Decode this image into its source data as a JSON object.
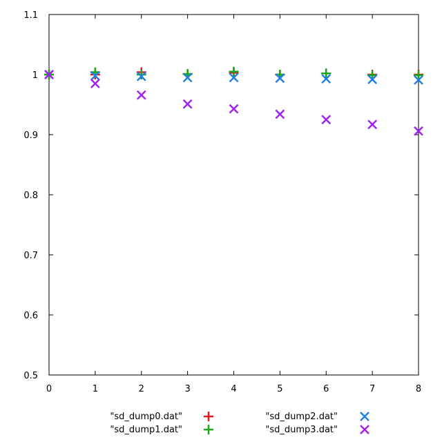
{
  "chart_data": {
    "type": "scatter",
    "x": [
      0,
      1,
      2,
      3,
      4,
      5,
      6,
      7,
      8
    ],
    "xlim": [
      0,
      8
    ],
    "ylim": [
      0.5,
      1.1
    ],
    "x_ticks": [
      "0",
      "1",
      "2",
      "3",
      "4",
      "5",
      "6",
      "7",
      "8"
    ],
    "y_ticks": [
      "0.5",
      "0.6",
      "0.7",
      "0.8",
      "0.9",
      "1",
      "1.1"
    ],
    "grid": false,
    "legend_position": "bottom",
    "series": [
      {
        "name": "\"sd_dump0.dat\"",
        "marker": "plus",
        "color": "#e41a1c",
        "values": [
          1.0,
          1.0,
          1.004,
          1.001,
          1.003,
          1.0,
          1.002,
          1.0,
          1.0
        ]
      },
      {
        "name": "\"sd_dump1.dat\"",
        "marker": "plus",
        "color": "#1aa81a",
        "values": [
          1.0,
          1.004,
          1.0,
          1.001,
          1.005,
          1.0,
          1.002,
          0.999,
          0.999
        ]
      },
      {
        "name": "\"sd_dump2.dat\"",
        "marker": "cross",
        "color": "#1f7fe0",
        "values": [
          1.0,
          0.998,
          0.997,
          0.995,
          0.995,
          0.994,
          0.993,
          0.992,
          0.991
        ]
      },
      {
        "name": "\"sd_dump3.dat\"",
        "marker": "cross",
        "color": "#a020f0",
        "values": [
          1.0,
          0.985,
          0.966,
          0.951,
          0.943,
          0.934,
          0.925,
          0.917,
          0.906
        ]
      }
    ]
  }
}
